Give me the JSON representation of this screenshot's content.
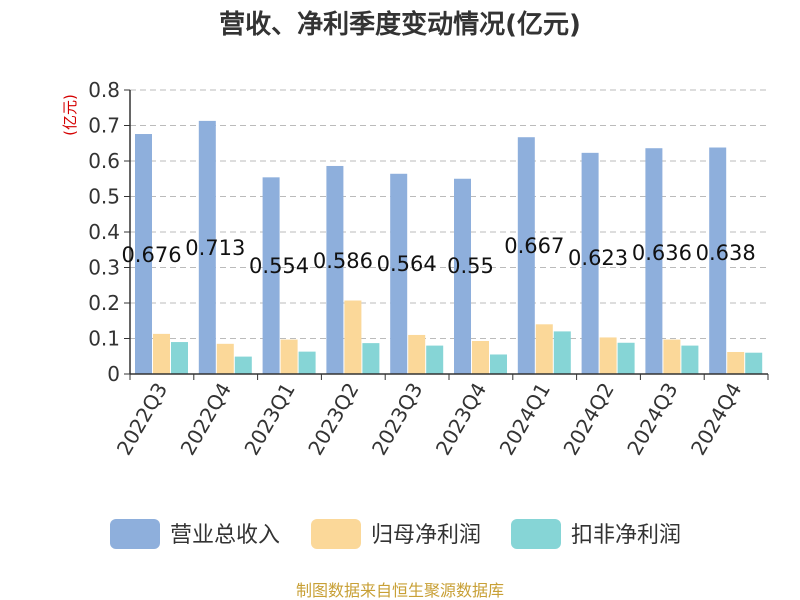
{
  "chart_data": {
    "type": "bar",
    "title": "营收、净利季度变动情况(亿元)",
    "unit_label": "(亿元)",
    "categories": [
      "2022Q3",
      "2022Q4",
      "2023Q1",
      "2023Q2",
      "2023Q3",
      "2023Q4",
      "2024Q1",
      "2024Q2",
      "2024Q3",
      "2024Q4"
    ],
    "series": [
      {
        "name": "营业总收入",
        "color": "#8eafdc",
        "values": [
          0.676,
          0.713,
          0.554,
          0.586,
          0.564,
          0.55,
          0.667,
          0.623,
          0.636,
          0.638
        ],
        "labels": [
          "0.676",
          "0.713",
          "0.554",
          "0.586",
          "0.564",
          "0.55",
          "0.667",
          "0.623",
          "0.636",
          "0.638"
        ]
      },
      {
        "name": "归母净利润",
        "color": "#fbd899",
        "values": [
          0.113,
          0.085,
          0.097,
          0.207,
          0.11,
          0.093,
          0.14,
          0.103,
          0.097,
          0.062
        ]
      },
      {
        "name": "扣非净利润",
        "color": "#86d5d6",
        "values": [
          0.09,
          0.049,
          0.063,
          0.087,
          0.08,
          0.055,
          0.12,
          0.088,
          0.08,
          0.06
        ]
      }
    ],
    "ylim": [
      0,
      0.8
    ],
    "yticks": [
      "0",
      "0.1",
      "0.2",
      "0.3",
      "0.4",
      "0.5",
      "0.6",
      "0.7",
      "0.8"
    ],
    "grid": true,
    "legend_position": "bottom",
    "source": "制图数据来自恒生聚源数据库"
  }
}
